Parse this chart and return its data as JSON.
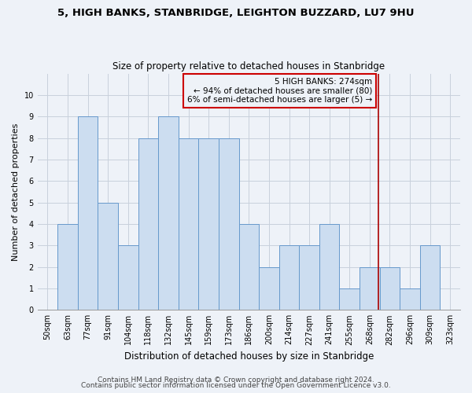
{
  "title": "5, HIGH BANKS, STANBRIDGE, LEIGHTON BUZZARD, LU7 9HU",
  "subtitle": "Size of property relative to detached houses in Stanbridge",
  "xlabel": "Distribution of detached houses by size in Stanbridge",
  "ylabel": "Number of detached properties",
  "categories": [
    "50sqm",
    "63sqm",
    "77sqm",
    "91sqm",
    "104sqm",
    "118sqm",
    "132sqm",
    "145sqm",
    "159sqm",
    "173sqm",
    "186sqm",
    "200sqm",
    "214sqm",
    "227sqm",
    "241sqm",
    "255sqm",
    "268sqm",
    "282sqm",
    "296sqm",
    "309sqm",
    "323sqm"
  ],
  "values": [
    0,
    4,
    9,
    5,
    3,
    8,
    9,
    8,
    8,
    8,
    4,
    2,
    3,
    3,
    4,
    1,
    2,
    2,
    1,
    3,
    0
  ],
  "bar_color": "#ccddf0",
  "bar_edge_color": "#6699cc",
  "grid_color": "#c8d0dc",
  "subject_line_color": "#aa0000",
  "annotation_text": "5 HIGH BANKS: 274sqm\n← 94% of detached houses are smaller (80)\n6% of semi-detached houses are larger (5) →",
  "annotation_box_color": "#cc0000",
  "ylim": [
    0,
    11
  ],
  "yticks": [
    0,
    1,
    2,
    3,
    4,
    5,
    6,
    7,
    8,
    9,
    10,
    11
  ],
  "footnote1": "Contains HM Land Registry data © Crown copyright and database right 2024.",
  "footnote2": "Contains public sector information licensed under the Open Government Licence v3.0.",
  "title_fontsize": 9.5,
  "subtitle_fontsize": 8.5,
  "xlabel_fontsize": 8.5,
  "ylabel_fontsize": 8,
  "tick_fontsize": 7,
  "annotation_fontsize": 7.5,
  "footnote_fontsize": 6.5,
  "background_color": "#eef2f8"
}
